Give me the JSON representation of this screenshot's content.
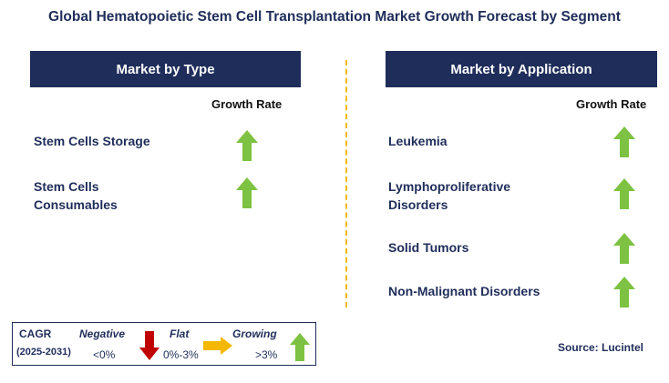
{
  "title": "Global Hematopoietic Stem Cell Transplantation Market Growth Forecast by Segment",
  "left_panel": {
    "header": "Market by Type",
    "growth_label": "Growth Rate",
    "items": [
      "Stem Cells Storage",
      "Stem Cells\nConsumables"
    ]
  },
  "right_panel": {
    "header": "Market by Application",
    "growth_label": "Growth Rate",
    "items": [
      "Leukemia",
      "Lymphoproliferative\nDisorders",
      "Solid Tumors",
      "Non-Malignant Disorders"
    ]
  },
  "legend": {
    "cagr_label": "CAGR",
    "period": "(2025-2031)",
    "negative_label": "Negative",
    "negative_range": "<0%",
    "flat_label": "Flat",
    "flat_range": "0%-3%",
    "growing_label": "Growing",
    "growing_range": ">3%"
  },
  "source": "Source: Lucintel",
  "colors": {
    "navy": "#1f2d5a",
    "growing_arrow": "#7dc242",
    "negative_arrow": "#c00000",
    "flat_arrow": "#f5b800",
    "divider": "#f5b800"
  },
  "icons": {
    "growth_indicator": "green-up-arrow-icon",
    "negative": "red-down-arrow-icon",
    "flat": "yellow-right-arrow-icon",
    "growing": "green-up-arrow-icon"
  }
}
